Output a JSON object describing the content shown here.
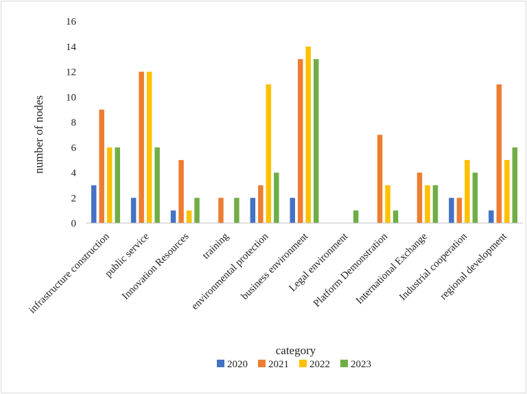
{
  "chart_data": {
    "type": "bar",
    "title": "",
    "xlabel": "category",
    "ylabel": "number of nodes",
    "ylim": [
      0,
      16
    ],
    "yticks": [
      "0",
      "2",
      "4",
      "6",
      "8",
      "10",
      "12",
      "14",
      "16"
    ],
    "grid": false,
    "legend_position": "bottom",
    "categories": [
      "infrastructure construction",
      "public service",
      "Innovation Resources",
      "training",
      "environmental protection",
      "business environment",
      "Legal environment",
      "Platform Demonstration",
      "International Exchange",
      "Industrial cooperation",
      "regional development"
    ],
    "series": [
      {
        "name": "2020",
        "color": "#4472C4",
        "values": [
          3,
          2,
          1,
          0,
          2,
          2,
          0,
          0,
          0,
          2,
          1
        ]
      },
      {
        "name": "2021",
        "color": "#ED7D31",
        "values": [
          9,
          12,
          5,
          2,
          3,
          13,
          0,
          7,
          4,
          2,
          11
        ]
      },
      {
        "name": "2022",
        "color": "#FFC000",
        "values": [
          6,
          12,
          1,
          0,
          11,
          14,
          0,
          3,
          3,
          5,
          5
        ]
      },
      {
        "name": "2023",
        "color": "#70AD47",
        "values": [
          6,
          6,
          2,
          2,
          4,
          13,
          1,
          1,
          3,
          4,
          6
        ]
      }
    ]
  }
}
